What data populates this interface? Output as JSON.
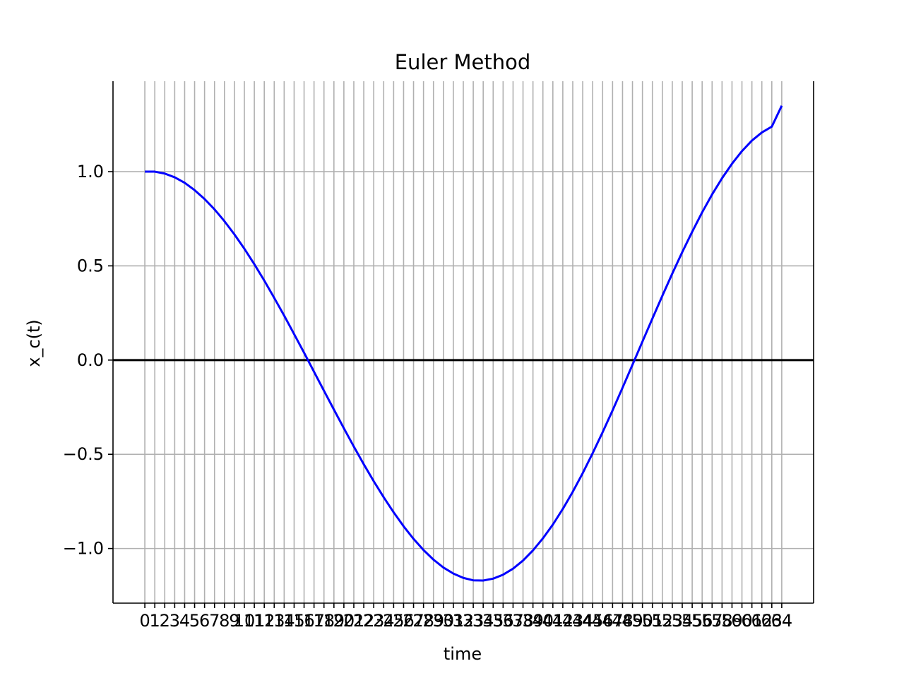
{
  "chart_data": {
    "type": "line",
    "title": "Euler Method",
    "xlabel": "time",
    "ylabel": "x_c(t)",
    "xlim": [
      -3.2,
      67.2
    ],
    "ylim": [
      -1.29,
      1.48
    ],
    "grid": true,
    "zero_line": true,
    "colors": {
      "series": "#0000ff",
      "grid": "#b0b0b0",
      "zero_line": "#000000",
      "axis": "#000000"
    },
    "x_ticks": [
      0,
      1,
      2,
      3,
      4,
      5,
      6,
      7,
      8,
      9,
      10,
      11,
      12,
      13,
      14,
      15,
      16,
      17,
      18,
      19,
      20,
      21,
      22,
      23,
      24,
      25,
      26,
      27,
      28,
      29,
      30,
      31,
      32,
      33,
      34,
      35,
      36,
      37,
      38,
      39,
      40,
      41,
      42,
      43,
      44,
      45,
      46,
      47,
      48,
      49,
      50,
      51,
      52,
      53,
      54,
      55,
      56,
      57,
      58,
      59,
      60,
      61,
      62,
      63,
      64
    ],
    "y_ticks": [
      {
        "value": -1.0,
        "label": "−1.0"
      },
      {
        "value": -0.5,
        "label": "−0.5"
      },
      {
        "value": 0.0,
        "label": "0.0"
      },
      {
        "value": 0.5,
        "label": "0.5"
      },
      {
        "value": 1.0,
        "label": "1.0"
      }
    ],
    "series": [
      {
        "x": [
          0,
          1,
          2,
          3,
          4,
          5,
          6,
          7,
          8,
          9,
          10,
          11,
          12,
          13,
          14,
          15,
          16,
          17,
          18,
          19,
          20,
          21,
          22,
          23,
          24,
          25,
          26,
          27,
          28,
          29,
          30,
          31,
          32,
          33,
          34,
          35,
          36,
          37,
          38,
          39,
          40,
          41,
          42,
          43,
          44,
          45,
          46,
          47,
          48,
          49,
          50,
          51,
          52,
          53,
          54,
          55,
          56,
          57,
          58,
          59,
          60,
          61,
          62,
          63,
          64
        ],
        "values": [
          1.0,
          1.0,
          0.99,
          0.97,
          0.941,
          0.902,
          0.855,
          0.8,
          0.737,
          0.667,
          0.591,
          0.509,
          0.422,
          0.33,
          0.236,
          0.138,
          0.039,
          -0.062,
          -0.163,
          -0.263,
          -0.362,
          -0.459,
          -0.553,
          -0.643,
          -0.728,
          -0.808,
          -0.882,
          -0.949,
          -1.008,
          -1.059,
          -1.101,
          -1.133,
          -1.156,
          -1.169,
          -1.17,
          -1.16,
          -1.139,
          -1.107,
          -1.064,
          -1.01,
          -0.946,
          -0.873,
          -0.79,
          -0.699,
          -0.6,
          -0.494,
          -0.383,
          -0.267,
          -0.147,
          -0.025,
          0.098,
          0.22,
          0.341,
          0.459,
          0.573,
          0.681,
          0.784,
          0.879,
          0.965,
          1.042,
          1.109,
          1.165,
          1.208,
          1.239,
          1.35
        ]
      }
    ]
  }
}
